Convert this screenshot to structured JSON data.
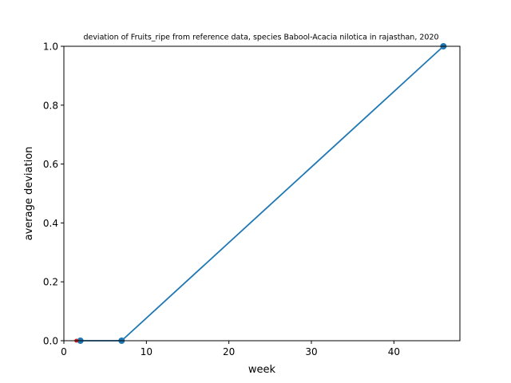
{
  "chart_data": {
    "type": "line",
    "title": "deviation of Fruits_ripe from reference data, species Babool-Acacia nilotica in rajasthan, 2020",
    "xlabel": "week",
    "ylabel": "average deviation",
    "xlim": [
      0,
      48
    ],
    "ylim": [
      0,
      1.0
    ],
    "xticks": [
      0,
      10,
      20,
      30,
      40
    ],
    "xtick_labels": [
      "0",
      "10",
      "20",
      "30",
      "40"
    ],
    "yticks": [
      0,
      0.2,
      0.4,
      0.6,
      0.8,
      1.0
    ],
    "ytick_labels": [
      "0.0",
      "0.2",
      "0.4",
      "0.6",
      "0.8",
      "1.0"
    ],
    "grid": false,
    "series": [
      {
        "color": "#1f77b4",
        "x": [
          2,
          7,
          46
        ],
        "y": [
          0,
          0,
          1.0
        ]
      }
    ],
    "marker_color": "#d62728"
  }
}
